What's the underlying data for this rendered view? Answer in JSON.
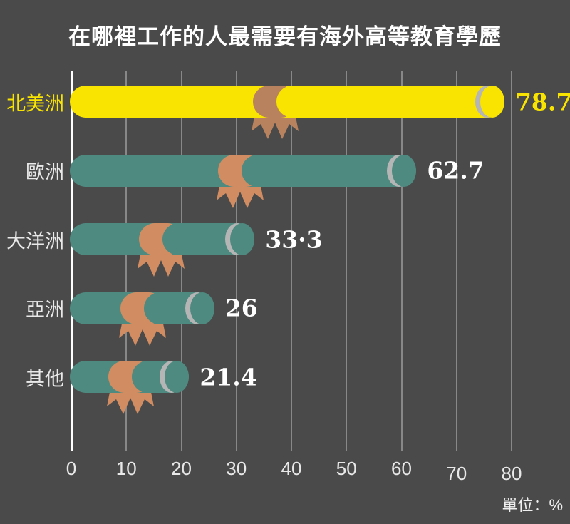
{
  "title": "在哪裡工作的人最需要有海外高等教育學歷",
  "unit_note": "單位：%",
  "colors": {
    "background": "#4a4a4a",
    "title_text": "#ffffff",
    "axis_line": "#ffffff",
    "gridline": "#979797",
    "tick_label": "#e8e8e8",
    "bar_yellow": "#f9e300",
    "bar_teal": "#4e8a80",
    "end_cap_gray": "#b5b5b5",
    "ribbon_brown": "#b9825e",
    "ribbon_orange": "#d18c61",
    "category_label_white": "#e9e9e9"
  },
  "chart_data": {
    "type": "bar",
    "orientation": "horizontal",
    "title": "在哪裡工作的人最需要有海外高等教育學歷",
    "unit": "%",
    "categories": [
      "北美洲",
      "歐洲",
      "大洋洲",
      "亞洲",
      "其他"
    ],
    "values": [
      78.7,
      62.7,
      33.3,
      26,
      21.4
    ],
    "value_labels": [
      "78.7",
      "62.7",
      "33·3",
      "26",
      "21.4"
    ],
    "x_ticks": [
      0,
      10,
      20,
      30,
      40,
      50,
      60,
      70,
      80
    ],
    "xlim": [
      0,
      80
    ],
    "grid": true,
    "legend": "none",
    "series": [
      {
        "category": "北美洲",
        "value": 78.7,
        "value_label": "78.7",
        "bar_color": "#f9e300",
        "label_color": "#f9e300",
        "value_color": "#f9e300",
        "ribbon_color": "#b9825e",
        "ribbon_pos": 0.47
      },
      {
        "category": "歐洲",
        "value": 62.7,
        "value_label": "62.7",
        "bar_color": "#4e8a80",
        "label_color": "#e9e9e9",
        "value_color": "#ffffff",
        "ribbon_color": "#d18c61",
        "ribbon_pos": 0.49
      },
      {
        "category": "大洋洲",
        "value": 33.3,
        "value_label": "33·3",
        "bar_color": "#4e8a80",
        "label_color": "#e9e9e9",
        "value_color": "#ffffff",
        "ribbon_color": "#d18c61",
        "ribbon_pos": 0.49
      },
      {
        "category": "亞洲",
        "value": 26,
        "value_label": "26",
        "bar_color": "#4e8a80",
        "label_color": "#e9e9e9",
        "value_color": "#ffffff",
        "ribbon_color": "#d18c61",
        "ribbon_pos": 0.5
      },
      {
        "category": "其他",
        "value": 21.4,
        "value_label": "21.4",
        "bar_color": "#4e8a80",
        "label_color": "#e9e9e9",
        "value_color": "#ffffff",
        "ribbon_color": "#d18c61",
        "ribbon_pos": 0.5
      }
    ],
    "end_cap_color": "#b5b5b5"
  }
}
